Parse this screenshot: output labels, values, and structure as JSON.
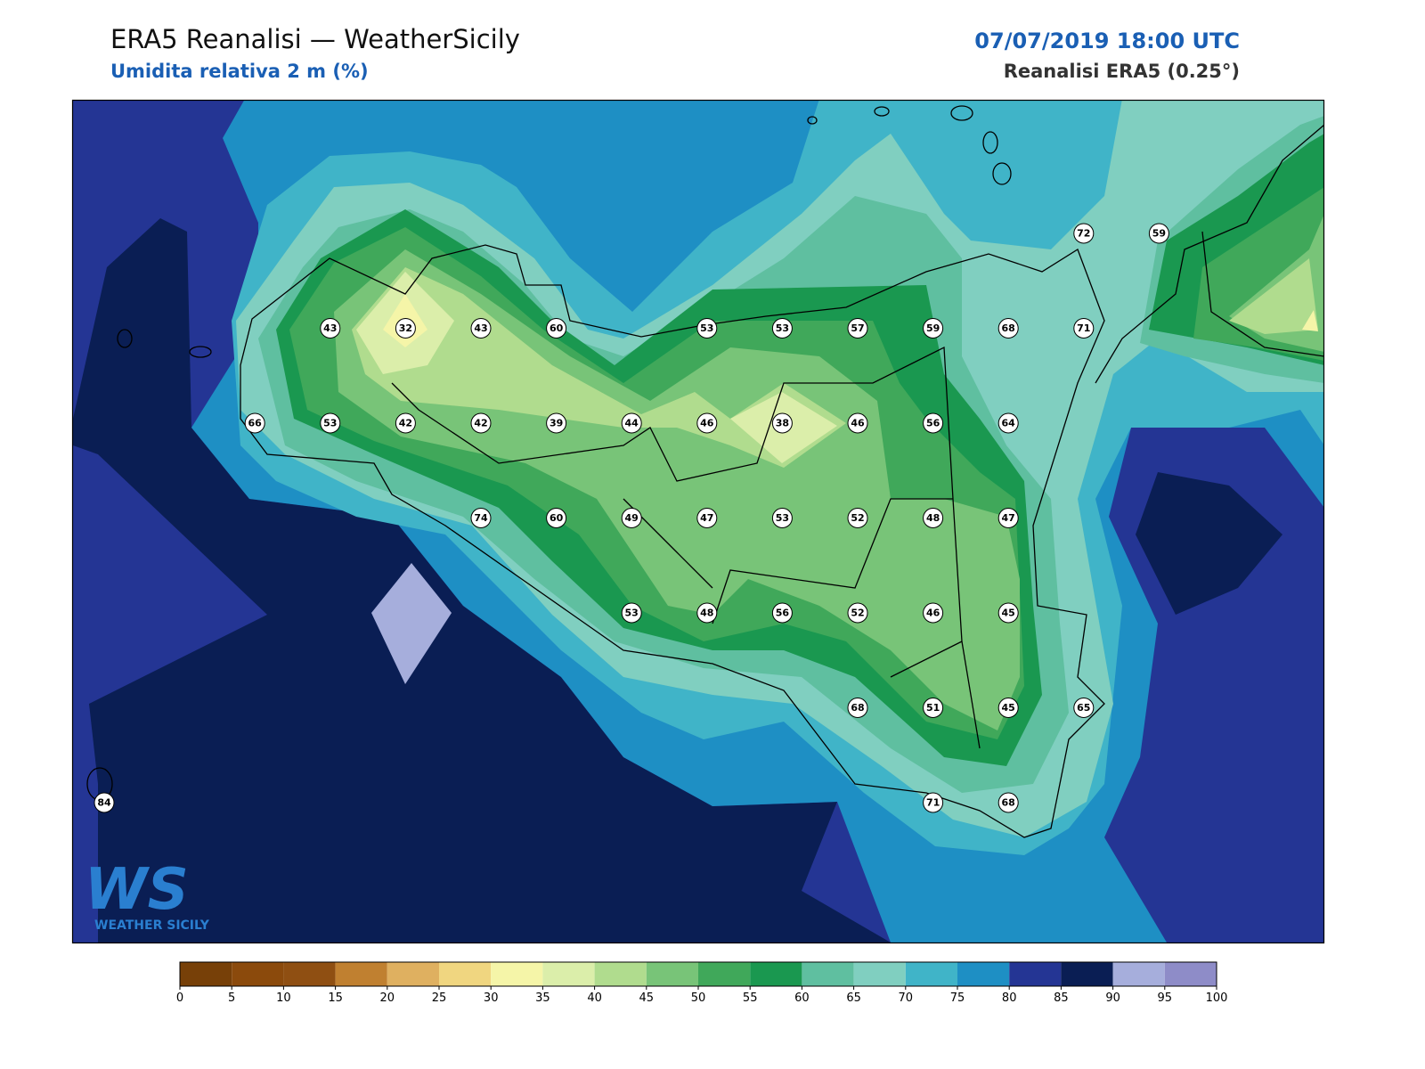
{
  "header": {
    "title": "ERA5 Reanalisi — WeatherSicily",
    "subtitle": "Umidita relativa 2 m (%)",
    "datetime": "07/07/2019 18:00 UTC",
    "source": "Reanalisi ERA5 (0.25°)"
  },
  "stations": {
    "grid": [
      [
        null,
        null,
        null,
        null,
        null,
        null,
        null,
        null,
        null,
        null,
        null,
        null,
        null,
        72,
        59
      ],
      [
        null,
        null,
        null,
        43,
        32,
        43,
        60,
        null,
        53,
        53,
        57,
        59,
        68,
        71,
        null
      ],
      [
        null,
        null,
        66,
        53,
        42,
        42,
        39,
        44,
        46,
        38,
        46,
        56,
        64,
        null,
        null
      ],
      [
        null,
        null,
        null,
        null,
        null,
        74,
        60,
        49,
        47,
        53,
        52,
        48,
        47,
        null,
        null
      ],
      [
        null,
        null,
        null,
        null,
        null,
        null,
        null,
        53,
        48,
        56,
        52,
        46,
        45,
        null,
        null
      ],
      [
        null,
        null,
        null,
        null,
        null,
        null,
        null,
        null,
        null,
        null,
        68,
        51,
        45,
        65,
        null
      ],
      [
        84,
        null,
        null,
        null,
        null,
        null,
        null,
        null,
        null,
        null,
        null,
        71,
        68,
        null,
        null
      ]
    ]
  },
  "colorbar": {
    "bins": [
      0,
      5,
      10,
      15,
      20,
      25,
      30,
      35,
      40,
      45,
      50,
      55,
      60,
      65,
      70,
      75,
      80,
      85,
      90,
      95,
      100
    ],
    "colors": [
      "#774008",
      "#8b4a0c",
      "#8f4f12",
      "#c08030",
      "#dfb060",
      "#f0d680",
      "#f5f5a8",
      "#dbeeaa",
      "#b0dc8e",
      "#78c478",
      "#40a85a",
      "#1a9850",
      "#5fbfa0",
      "#80cfc0",
      "#40b4c8",
      "#1e8fc4",
      "#243594",
      "#0a1e54",
      "#a6aedc",
      "#8e8cc8"
    ]
  },
  "logo": {
    "initials": "WS",
    "name": "WEATHER SICILY"
  }
}
